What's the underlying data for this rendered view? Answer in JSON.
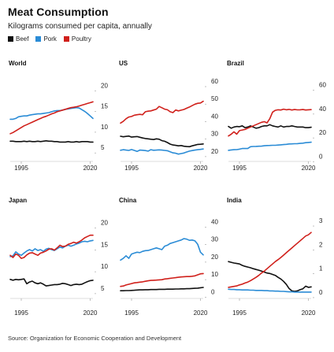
{
  "title": "Meat Consumption",
  "subtitle": "Kilograms consumed per capita, annually",
  "legend": [
    {
      "label": "Beef",
      "color": "#111111"
    },
    {
      "label": "Pork",
      "color": "#2b8cd6"
    },
    {
      "label": "Poultry",
      "color": "#d0201b"
    }
  ],
  "source": "Source: Organization for Economic Cooperation and Development",
  "chart_data": [
    {
      "type": "line",
      "title": "World",
      "ylim": [
        2,
        21
      ],
      "yticks": [
        5,
        10,
        15,
        20
      ],
      "xticks": [
        1995,
        2020
      ],
      "x_start": 1991,
      "x_end": 2021,
      "series": [
        {
          "name": "Beef",
          "color": "#111111",
          "values": [
            6.5,
            6.5,
            6.4,
            6.4,
            6.4,
            6.5,
            6.4,
            6.5,
            6.4,
            6.4,
            6.5,
            6.4,
            6.5,
            6.6,
            6.5,
            6.5,
            6.4,
            6.4,
            6.3,
            6.3,
            6.3,
            6.4,
            6.3,
            6.3,
            6.4,
            6.3,
            6.4,
            6.4,
            6.4,
            6.3,
            6.3
          ]
        },
        {
          "name": "Pork",
          "color": "#2b8cd6",
          "values": [
            11.8,
            11.8,
            12.0,
            12.4,
            12.5,
            12.6,
            12.6,
            12.8,
            12.9,
            13.0,
            13.1,
            13.1,
            13.2,
            13.3,
            13.4,
            13.6,
            13.8,
            13.9,
            13.9,
            14.0,
            14.2,
            14.3,
            14.4,
            14.5,
            14.6,
            14.5,
            14.1,
            13.7,
            13.2,
            12.6,
            12.0
          ]
        },
        {
          "name": "Poultry",
          "color": "#d0201b",
          "values": [
            8.3,
            8.6,
            9.0,
            9.4,
            9.8,
            10.2,
            10.5,
            10.8,
            11.1,
            11.4,
            11.7,
            12.0,
            12.3,
            12.5,
            12.8,
            13.1,
            13.3,
            13.6,
            13.8,
            14.0,
            14.2,
            14.4,
            14.6,
            14.7,
            14.8,
            15.0,
            15.2,
            15.4,
            15.6,
            15.8,
            16.0
          ]
        }
      ]
    },
    {
      "type": "line",
      "title": "US",
      "ylim": [
        15,
        60
      ],
      "yticks": [
        20,
        30,
        40,
        50,
        60
      ],
      "xticks": [
        1995,
        2020
      ],
      "x_start": 1991,
      "x_end": 2021,
      "series": [
        {
          "name": "Beef",
          "color": "#111111",
          "values": [
            28.5,
            28.2,
            28.4,
            28.6,
            28.0,
            28.2,
            28.3,
            27.9,
            27.5,
            27.2,
            27.0,
            26.8,
            26.6,
            27.0,
            26.8,
            26.0,
            25.6,
            24.9,
            24.0,
            23.5,
            23.3,
            23.0,
            23.2,
            22.8,
            22.6,
            22.5,
            23.0,
            23.4,
            23.8,
            23.9,
            24.1
          ]
        },
        {
          "name": "Pork",
          "color": "#2b8cd6",
          "values": [
            20.5,
            20.8,
            20.6,
            20.4,
            20.9,
            20.4,
            19.8,
            20.6,
            20.5,
            20.3,
            20.0,
            20.8,
            20.5,
            20.6,
            20.7,
            20.6,
            20.4,
            20.2,
            19.6,
            19.0,
            18.8,
            18.3,
            18.6,
            18.9,
            19.5,
            20.0,
            20.3,
            20.6,
            20.8,
            21.0,
            21.2
          ]
        },
        {
          "name": "Poultry",
          "color": "#d0201b",
          "values": [
            36.0,
            37.0,
            38.5,
            39.5,
            39.8,
            40.5,
            40.8,
            41.0,
            40.8,
            42.5,
            42.8,
            43.0,
            43.5,
            44.0,
            45.5,
            44.8,
            44.0,
            43.6,
            42.5,
            42.0,
            43.5,
            43.0,
            43.4,
            43.8,
            44.5,
            45.2,
            46.0,
            46.8,
            47.3,
            47.5,
            48.5
          ]
        }
      ]
    },
    {
      "type": "line",
      "title": "Brazil",
      "ylim": [
        -3,
        63
      ],
      "yticks": [
        0,
        20,
        40,
        60
      ],
      "xticks": [
        1995,
        2020
      ],
      "x_start": 1991,
      "x_end": 2021,
      "series": [
        {
          "name": "Beef",
          "color": "#111111",
          "values": [
            25.0,
            23.5,
            24.5,
            25.0,
            24.8,
            25.5,
            24.0,
            24.5,
            25.5,
            24.5,
            23.5,
            24.0,
            25.0,
            25.5,
            25.5,
            26.5,
            25.5,
            25.0,
            24.5,
            25.5,
            24.5,
            25.0,
            25.0,
            25.5,
            25.0,
            24.5,
            24.5,
            24.5,
            24.0,
            24.0,
            24.3
          ]
        },
        {
          "name": "Pork",
          "color": "#2b8cd6",
          "values": [
            5.0,
            5.3,
            5.5,
            5.6,
            6.0,
            6.5,
            6.6,
            6.5,
            8.0,
            8.2,
            8.3,
            8.4,
            8.5,
            8.8,
            9.0,
            9.1,
            9.2,
            9.2,
            9.4,
            9.6,
            9.8,
            10.0,
            10.3,
            10.4,
            10.5,
            10.6,
            10.8,
            11.0,
            11.4,
            11.6,
            11.8
          ]
        },
        {
          "name": "Poultry",
          "color": "#d0201b",
          "values": [
            17.0,
            18.5,
            20.5,
            18.5,
            21.5,
            22.0,
            22.5,
            23.5,
            24.5,
            25.5,
            26.5,
            27.5,
            28.5,
            29.0,
            28.0,
            31.5,
            37.0,
            38.5,
            39.0,
            38.8,
            39.5,
            39.0,
            39.3,
            38.8,
            39.2,
            38.9,
            39.0,
            39.2,
            38.8,
            39.0,
            39.1
          ]
        }
      ]
    },
    {
      "type": "line",
      "title": "Japan",
      "ylim": [
        3,
        21
      ],
      "yticks": [
        5,
        10,
        15,
        20
      ],
      "xticks": [
        1995,
        2020
      ],
      "x_start": 1991,
      "x_end": 2021,
      "series": [
        {
          "name": "Beef",
          "color": "#111111",
          "values": [
            7.0,
            6.8,
            7.0,
            6.9,
            7.0,
            7.1,
            6.0,
            6.4,
            6.6,
            6.2,
            6.0,
            6.2,
            5.9,
            5.5,
            5.6,
            5.7,
            5.8,
            5.8,
            5.9,
            6.1,
            6.0,
            5.8,
            5.6,
            5.8,
            5.9,
            5.8,
            5.9,
            6.2,
            6.5,
            6.7,
            6.8
          ]
        },
        {
          "name": "Pork",
          "color": "#2b8cd6",
          "values": [
            12.2,
            12.4,
            13.3,
            12.8,
            12.5,
            13.0,
            13.5,
            13.8,
            13.5,
            14.0,
            13.6,
            13.8,
            13.4,
            13.9,
            14.1,
            13.8,
            13.6,
            14.0,
            14.4,
            14.2,
            14.6,
            14.8,
            14.6,
            14.8,
            15.1,
            15.3,
            15.6,
            15.7,
            15.6,
            15.8,
            15.9
          ]
        },
        {
          "name": "Poultry",
          "color": "#d0201b",
          "values": [
            12.5,
            12.0,
            12.8,
            12.5,
            11.8,
            12.0,
            12.6,
            13.0,
            13.1,
            12.8,
            12.5,
            13.0,
            13.2,
            13.5,
            13.9,
            14.0,
            13.7,
            14.2,
            14.8,
            14.5,
            14.6,
            15.0,
            15.2,
            15.5,
            15.3,
            15.6,
            16.0,
            16.5,
            16.8,
            17.1,
            17.1
          ]
        }
      ]
    },
    {
      "type": "line",
      "title": "China",
      "ylim": [
        -3,
        42
      ],
      "yticks": [
        0,
        10,
        20,
        30,
        40
      ],
      "xticks": [
        1995,
        2020
      ],
      "x_start": 1991,
      "x_end": 2021,
      "series": [
        {
          "name": "Beef",
          "color": "#111111",
          "values": [
            0.5,
            0.5,
            0.6,
            0.6,
            0.7,
            0.8,
            0.9,
            1.0,
            1.0,
            1.1,
            1.1,
            1.2,
            1.2,
            1.2,
            1.3,
            1.3,
            1.3,
            1.4,
            1.4,
            1.4,
            1.5,
            1.5,
            1.6,
            1.6,
            1.7,
            1.7,
            1.8,
            1.9,
            2.0,
            2.2,
            2.4
          ]
        },
        {
          "name": "Pork",
          "color": "#2b8cd6",
          "values": [
            18.0,
            19.0,
            20.5,
            19.0,
            21.5,
            22.0,
            22.5,
            22.3,
            23.0,
            23.4,
            23.5,
            24.0,
            24.5,
            25.0,
            24.5,
            24.0,
            26.0,
            26.5,
            27.5,
            28.0,
            28.5,
            29.0,
            29.5,
            30.3,
            30.0,
            29.3,
            29.5,
            29.0,
            27.0,
            22.5,
            21.0
          ]
        },
        {
          "name": "Poultry",
          "color": "#d0201b",
          "values": [
            3.0,
            3.2,
            3.8,
            4.2,
            4.6,
            5.0,
            5.2,
            5.4,
            5.6,
            5.9,
            6.2,
            6.4,
            6.5,
            6.6,
            6.7,
            6.8,
            7.2,
            7.4,
            7.6,
            7.8,
            8.0,
            8.2,
            8.4,
            8.5,
            8.6,
            8.6,
            8.8,
            9.0,
            9.6,
            10.2,
            10.3
          ]
        }
      ]
    },
    {
      "type": "line",
      "title": "India",
      "ylim": [
        -0.2,
        3.1
      ],
      "yticks": [
        0,
        1,
        2,
        3
      ],
      "xticks": [
        1995,
        2020
      ],
      "x_start": 1991,
      "x_end": 2021,
      "series": [
        {
          "name": "Beef",
          "color": "#111111",
          "values": [
            1.28,
            1.25,
            1.22,
            1.2,
            1.18,
            1.12,
            1.08,
            1.05,
            1.02,
            0.98,
            0.95,
            0.92,
            0.88,
            0.84,
            0.8,
            0.78,
            0.74,
            0.7,
            0.62,
            0.55,
            0.45,
            0.32,
            0.15,
            0.05,
            0.03,
            0.05,
            0.1,
            0.14,
            0.25,
            0.2,
            0.22
          ]
        },
        {
          "name": "Pork",
          "color": "#2b8cd6",
          "values": [
            0.12,
            0.11,
            0.11,
            0.1,
            0.1,
            0.09,
            0.09,
            0.09,
            0.08,
            0.08,
            0.07,
            0.07,
            0.07,
            0.06,
            0.06,
            0.05,
            0.05,
            0.04,
            0.04,
            0.03,
            0.03,
            0.02,
            0.01,
            0.01,
            0.0,
            0.0,
            0.0,
            0.0,
            0.0,
            0.0,
            0.0
          ]
        },
        {
          "name": "Poultry",
          "color": "#d0201b",
          "values": [
            0.2,
            0.22,
            0.24,
            0.26,
            0.3,
            0.33,
            0.38,
            0.42,
            0.48,
            0.55,
            0.62,
            0.7,
            0.8,
            0.88,
            0.98,
            1.08,
            1.18,
            1.28,
            1.36,
            1.45,
            1.55,
            1.65,
            1.75,
            1.85,
            1.95,
            2.05,
            2.15,
            2.25,
            2.35,
            2.4,
            2.5
          ]
        }
      ]
    }
  ]
}
